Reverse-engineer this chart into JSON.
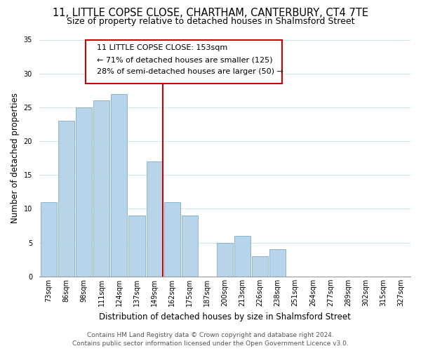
{
  "title": "11, LITTLE COPSE CLOSE, CHARTHAM, CANTERBURY, CT4 7TE",
  "subtitle": "Size of property relative to detached houses in Shalmsford Street",
  "xlabel": "Distribution of detached houses by size in Shalmsford Street",
  "ylabel": "Number of detached properties",
  "footer_line1": "Contains HM Land Registry data © Crown copyright and database right 2024.",
  "footer_line2": "Contains public sector information licensed under the Open Government Licence v3.0.",
  "bin_labels": [
    "73sqm",
    "86sqm",
    "98sqm",
    "111sqm",
    "124sqm",
    "137sqm",
    "149sqm",
    "162sqm",
    "175sqm",
    "187sqm",
    "200sqm",
    "213sqm",
    "226sqm",
    "238sqm",
    "251sqm",
    "264sqm",
    "277sqm",
    "289sqm",
    "302sqm",
    "315sqm",
    "327sqm"
  ],
  "bar_values": [
    11,
    23,
    25,
    26,
    27,
    9,
    17,
    11,
    9,
    0,
    5,
    6,
    3,
    4,
    0,
    0,
    0,
    0,
    0,
    0,
    0
  ],
  "bar_color": "#b8d4ea",
  "bar_edge_color": "#8ab4d4",
  "vline_color": "#cc0000",
  "annotation_title": "11 LITTLE COPSE CLOSE: 153sqm",
  "annotation_line1": "← 71% of detached houses are smaller (125)",
  "annotation_line2": "28% of semi-detached houses are larger (50) →",
  "ylim": [
    0,
    35
  ],
  "yticks": [
    0,
    5,
    10,
    15,
    20,
    25,
    30,
    35
  ],
  "background_color": "#ffffff",
  "grid_color": "#d0e8f0",
  "title_fontsize": 10.5,
  "subtitle_fontsize": 9,
  "axis_label_fontsize": 8.5,
  "tick_fontsize": 7,
  "footer_fontsize": 6.5
}
